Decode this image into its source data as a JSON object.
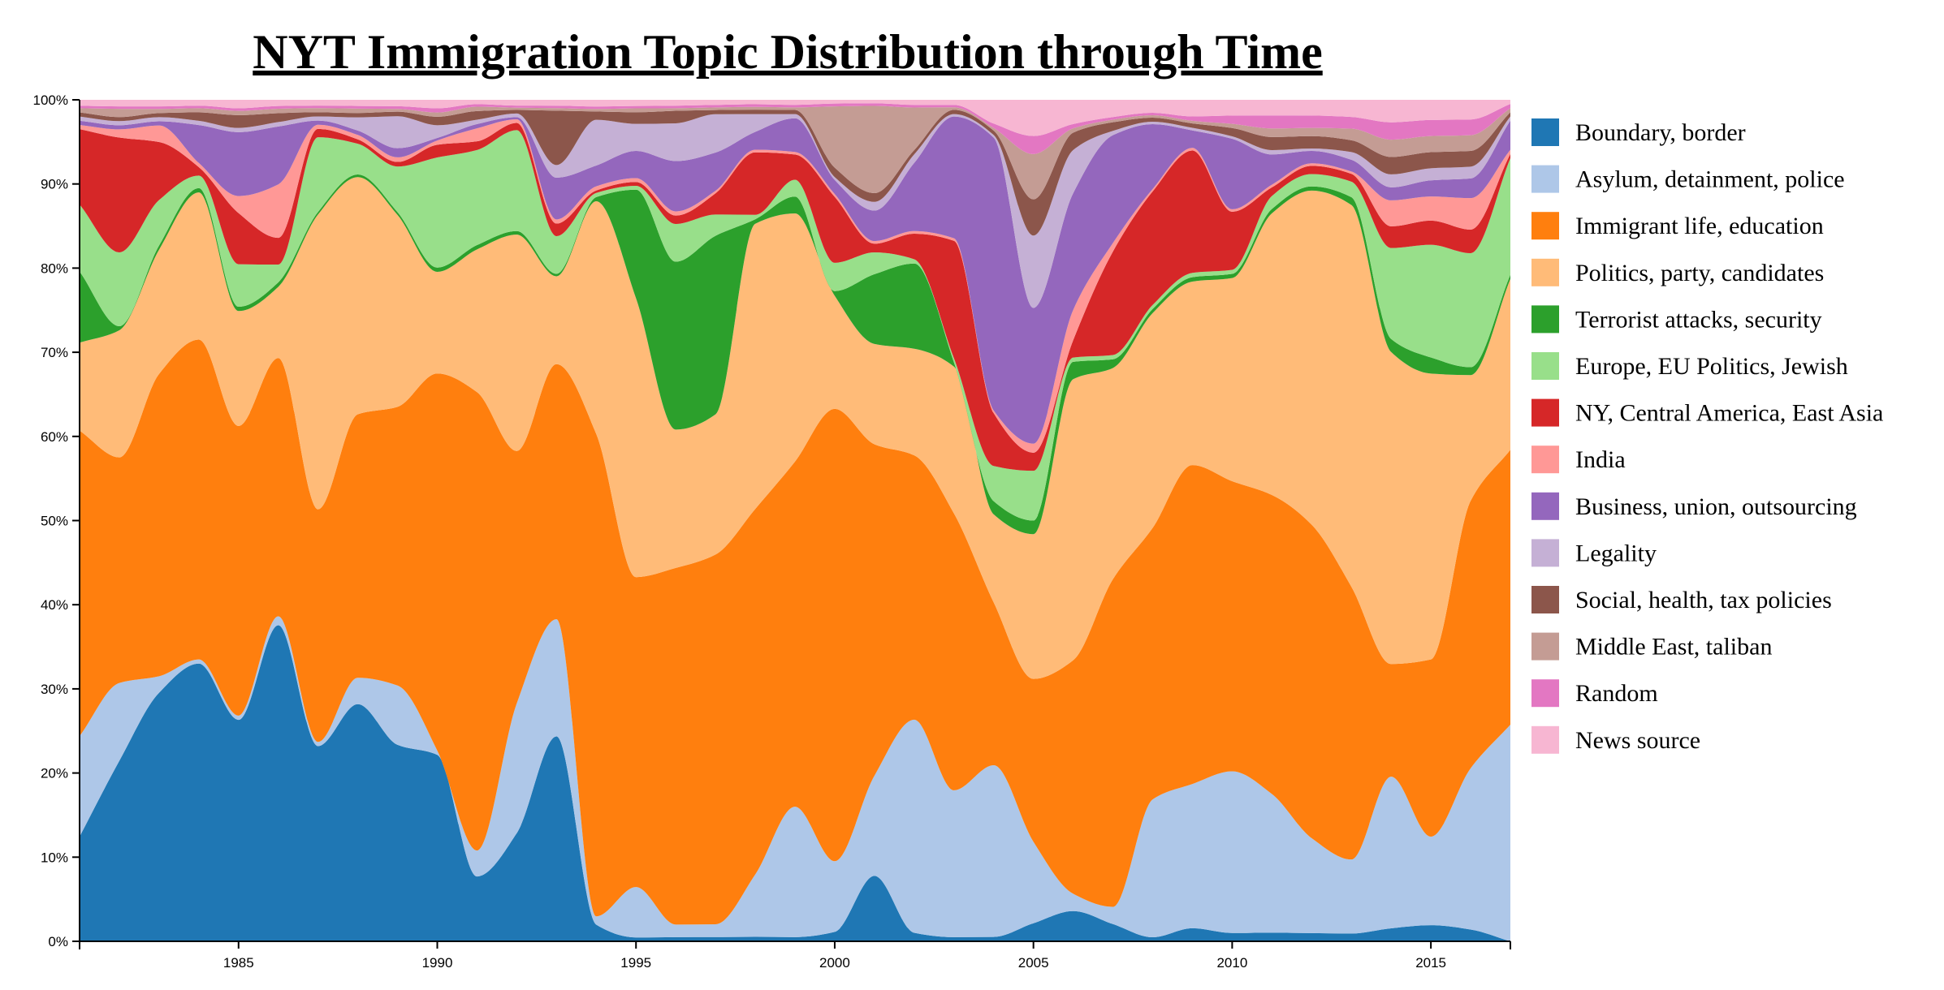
{
  "chart_data": {
    "type": "area",
    "stacked": true,
    "normalized": true,
    "curve": "smooth",
    "title": "NYT Immigration Topic Distribution through Time",
    "xlabel": "",
    "ylabel": "",
    "xlim": [
      1981,
      2017
    ],
    "ylim": [
      0,
      100
    ],
    "grid": false,
    "legend_position": "right",
    "x_ticks": [
      1985,
      1990,
      1995,
      2000,
      2005,
      2010,
      2015
    ],
    "x_tick_labels": [
      "1985",
      "1990",
      "1995",
      "2000",
      "2005",
      "2010",
      "2015"
    ],
    "y_ticks": [
      0,
      10,
      20,
      30,
      40,
      50,
      60,
      70,
      80,
      90,
      100
    ],
    "y_tick_labels": [
      "0%",
      "10%",
      "20%",
      "30%",
      "40%",
      "50%",
      "60%",
      "70%",
      "80%",
      "90%",
      "100%"
    ],
    "x": [
      1981,
      1982,
      1983,
      1984,
      1985,
      1986,
      1987,
      1988,
      1989,
      1990,
      1991,
      1992,
      1993,
      1994,
      1995,
      1996,
      1997,
      1998,
      1999,
      2000,
      2001,
      2002,
      2003,
      2004,
      2005,
      2006,
      2007,
      2008,
      2009,
      2010,
      2011,
      2012,
      2013,
      2014,
      2015,
      2016,
      2017
    ],
    "series": [
      {
        "name": "Boundary, border",
        "color": "#1f77b4",
        "values": [
          12.5,
          22,
          30,
          33,
          26,
          35.5,
          23.5,
          27,
          21.5,
          22,
          7.5,
          15,
          24.5,
          2,
          0.5,
          0.5,
          0.5,
          0.5,
          0.5,
          1,
          7.5,
          1,
          0.5,
          0.5,
          2,
          3.5,
          2,
          0.5,
          1.5,
          1,
          1,
          1,
          1,
          1.5,
          2,
          1.5,
          0
        ]
      },
      {
        "name": "Asylum, detainment, police",
        "color": "#aec7e8",
        "values": [
          12,
          9.5,
          2,
          0.5,
          0.5,
          1,
          0.5,
          3,
          6.5,
          0.5,
          3,
          18,
          14,
          1,
          6.5,
          1.5,
          1.5,
          7,
          15.5,
          7.5,
          11.5,
          25,
          17.5,
          19.5,
          9,
          2,
          2,
          17,
          16.5,
          19.5,
          16,
          11.5,
          9.5,
          17.5,
          11,
          20.5,
          26
        ]
      },
      {
        "name": "Immigrant life, education",
        "color": "#ff7f0e",
        "values": [
          36.5,
          27.5,
          36.5,
          38,
          34,
          29,
          28,
          30,
          30.5,
          44.5,
          53,
          35,
          30.5,
          58,
          40,
          42.5,
          43.5,
          41,
          41,
          48,
          38,
          31,
          33,
          18.5,
          18,
          27,
          38,
          33.5,
          36.5,
          35,
          34.5,
          38,
          35,
          13,
          22,
          34,
          33
        ]
      },
      {
        "name": "Politics, party, candidates",
        "color": "#ffbb78",
        "values": [
          10.5,
          15.5,
          15,
          17.5,
          13.5,
          8,
          35.5,
          27,
          21,
          12,
          16.5,
          30,
          10.5,
          28,
          36,
          16.5,
          16.5,
          32,
          29.5,
          12,
          11.5,
          12.5,
          17.5,
          10,
          16,
          32.5,
          24.5,
          26.5,
          21,
          24.5,
          32.5,
          40.5,
          49,
          36,
          35.5,
          16,
          20.5
        ]
      },
      {
        "name": "Terrorist attacks, security",
        "color": "#2ca02c",
        "values": [
          8.5,
          0.5,
          0.5,
          0.5,
          0.5,
          0.5,
          0.3,
          0.3,
          0.3,
          0.5,
          0.5,
          0.5,
          0.3,
          0.5,
          14,
          20,
          21,
          0.5,
          2,
          0.5,
          8,
          10,
          0.5,
          1.5,
          1.5,
          2,
          1,
          0.5,
          0.5,
          0.5,
          0.5,
          0.5,
          1,
          1.5,
          2,
          1,
          0.5
        ]
      },
      {
        "name": "Europe, EU Politics, Jewish",
        "color": "#98df8a",
        "values": [
          8,
          9,
          5.5,
          1.5,
          5,
          2,
          9,
          3.5,
          5,
          13,
          11,
          14,
          4.5,
          0.5,
          0.5,
          4.5,
          2.5,
          0.5,
          2,
          3,
          2.5,
          0.5,
          0.5,
          4,
          5.5,
          0.5,
          0.5,
          0.5,
          0.5,
          0.5,
          1.5,
          1.5,
          2,
          10.5,
          14,
          14.5,
          14
        ]
      },
      {
        "name": "NY, Central America, East Asia",
        "color": "#d62728",
        "values": [
          9,
          14,
          7,
          1,
          6,
          3,
          1,
          0.5,
          0.5,
          1.5,
          1,
          1,
          1.5,
          0.3,
          0.5,
          1,
          2.5,
          7,
          3,
          7,
          1,
          3,
          14,
          6,
          2,
          2,
          12,
          14,
          14,
          7,
          1,
          1,
          1,
          2.5,
          3,
          3,
          0.5
        ]
      },
      {
        "name": "India",
        "color": "#ff9896",
        "values": [
          0.5,
          1,
          2,
          0.5,
          2,
          6,
          0.5,
          0.5,
          0.5,
          0.5,
          1.5,
          0.5,
          0.5,
          0.5,
          0.5,
          0.5,
          0.3,
          0.3,
          0.3,
          0.3,
          0.3,
          0.3,
          0.3,
          0.3,
          1,
          3.5,
          1,
          0.3,
          0.3,
          0.3,
          0.3,
          0.3,
          0.3,
          3,
          3,
          4,
          0.5
        ]
      },
      {
        "name": "Business, union, outsourcing",
        "color": "#9467bd",
        "values": [
          0.5,
          0.5,
          0.5,
          4.5,
          7.5,
          6.5,
          0.5,
          0.5,
          1,
          0.3,
          0.5,
          0.3,
          5,
          2.5,
          3.5,
          6,
          4.5,
          2,
          4,
          1.5,
          3.5,
          8,
          14.5,
          31,
          15,
          13.5,
          12.5,
          8,
          2,
          8.5,
          3.5,
          1.5,
          1.5,
          1.5,
          2,
          2.5,
          3.5
        ]
      },
      {
        "name": "Legality",
        "color": "#c5b0d5",
        "values": [
          0.5,
          0.5,
          0.5,
          0.5,
          0.5,
          0.5,
          0.5,
          1.5,
          3.5,
          1.5,
          0.5,
          0.5,
          1.5,
          5.5,
          3.5,
          4.5,
          4.5,
          2,
          0.5,
          0.3,
          1,
          1,
          0.3,
          0.3,
          8,
          5,
          0.5,
          0.3,
          0.3,
          0.3,
          0.5,
          0.3,
          1,
          1.5,
          1.5,
          1.5,
          0.5
        ]
      },
      {
        "name": "Social, health, tax policies",
        "color": "#8c564b",
        "values": [
          0.5,
          0.5,
          0.5,
          1,
          1.5,
          1,
          0.5,
          0.5,
          0.5,
          1,
          1,
          0.5,
          6.5,
          1,
          1.5,
          1.5,
          0.5,
          0.5,
          0.5,
          1,
          1,
          0.5,
          0.5,
          0.5,
          4,
          2,
          1,
          0.5,
          0.5,
          1,
          1.5,
          1.5,
          1.5,
          2,
          2,
          2,
          0.5
        ]
      },
      {
        "name": "Middle East, taliban",
        "color": "#c49c94",
        "values": [
          0.5,
          1,
          0.5,
          0.5,
          0.5,
          0.5,
          0.5,
          0.5,
          0.3,
          0.5,
          0.5,
          0.3,
          0.3,
          0.3,
          0.5,
          0.3,
          0.3,
          0.3,
          0.3,
          6.5,
          10,
          5,
          0.3,
          0.3,
          5,
          0.5,
          0.3,
          0.3,
          0.3,
          0.5,
          1,
          1,
          1.5,
          2,
          2,
          2,
          0.5
        ]
      },
      {
        "name": "Random",
        "color": "#e377c2",
        "values": [
          0.3,
          0.3,
          0.3,
          0.3,
          0.3,
          0.3,
          0.3,
          0.3,
          0.3,
          0.5,
          0.3,
          0.3,
          0.3,
          0.3,
          0.3,
          0.3,
          0.3,
          0.3,
          0.3,
          0.3,
          0.3,
          0.3,
          0.3,
          0.5,
          2,
          0.5,
          0.3,
          0.3,
          0.5,
          1,
          1.5,
          1.5,
          1.5,
          2,
          2,
          2,
          0.5
        ]
      },
      {
        "name": "News source",
        "color": "#f7b6d2",
        "values": [
          0.7,
          0.8,
          0.8,
          0.7,
          1,
          0.7,
          0.7,
          0.7,
          0.7,
          1,
          0.5,
          0.8,
          0.7,
          0.8,
          0.8,
          0.7,
          0.6,
          0.5,
          0.6,
          0.4,
          0.4,
          0.6,
          0.6,
          2.7,
          4,
          2.8,
          2,
          1.6,
          1.9,
          1.9,
          1.8,
          1.9,
          2.2,
          2.6,
          2.5,
          2.5,
          0.5
        ]
      }
    ]
  }
}
